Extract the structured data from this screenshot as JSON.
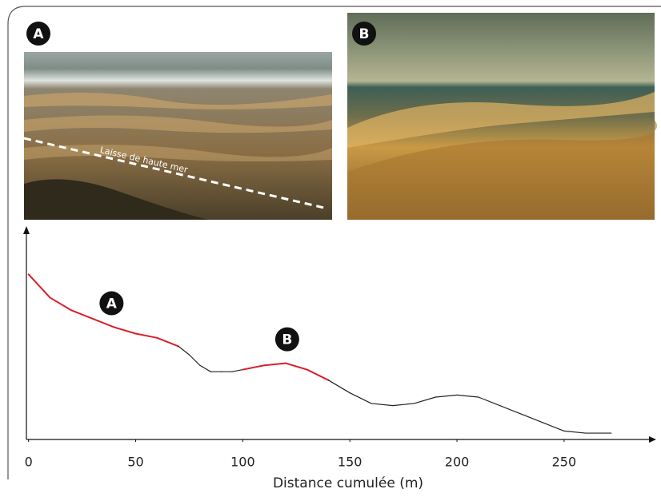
{
  "photos": [
    {
      "label": "A",
      "caption": "Laisse de haute mer"
    },
    {
      "label": "B"
    }
  ],
  "chart_data": {
    "type": "line",
    "xlabel": "Distance cumulée (m)",
    "x": [
      0,
      10,
      20,
      30,
      40,
      50,
      60,
      70,
      75,
      80,
      85,
      90,
      95,
      100,
      110,
      120,
      130,
      140,
      150,
      160,
      170,
      180,
      190,
      200,
      210,
      220,
      230,
      240,
      250,
      260,
      272
    ],
    "values": [
      78,
      67,
      61,
      57,
      53,
      50,
      48,
      44,
      40,
      35,
      32,
      32,
      32,
      33,
      35,
      36,
      33,
      28,
      22,
      17,
      16,
      17,
      20,
      21,
      20,
      16,
      12,
      8,
      4,
      3,
      3
    ],
    "color": "#222222",
    "highlight_color": "#d8202a",
    "highlights": [
      {
        "label": "A",
        "from": 0,
        "to": 73
      },
      {
        "label": "B",
        "from": 97,
        "to": 140
      }
    ],
    "xlim": [
      -1,
      293
    ],
    "ylim": [
      0,
      100
    ],
    "xticks": [
      0,
      50,
      100,
      150,
      200,
      250
    ]
  }
}
